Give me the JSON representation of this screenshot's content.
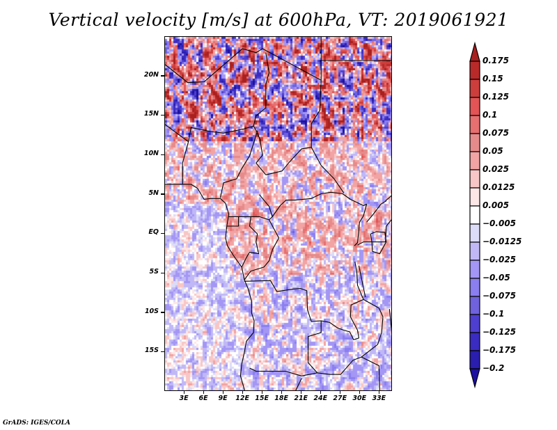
{
  "chart_data": {
    "type": "heatmap",
    "title": "Vertical velocity [m/s] at 600hPa, VT: 2019061921",
    "variable": "Vertical velocity",
    "units": "m/s",
    "level": "600hPa",
    "valid_time": "2019061921",
    "xlabel": "",
    "ylabel": "",
    "x_range_deg": [
      0,
      35
    ],
    "y_range_deg": [
      -20,
      25
    ],
    "x_ticks": [
      "3E",
      "6E",
      "9E",
      "12E",
      "15E",
      "18E",
      "21E",
      "24E",
      "27E",
      "30E",
      "33E"
    ],
    "x_tick_values": [
      3,
      6,
      9,
      12,
      15,
      18,
      21,
      24,
      27,
      30,
      33
    ],
    "y_ticks": [
      "20N",
      "15N",
      "10N",
      "5N",
      "EQ",
      "5S",
      "10S",
      "15S"
    ],
    "y_tick_values": [
      20,
      15,
      10,
      5,
      0,
      -5,
      -10,
      -15
    ],
    "grid": false,
    "legend_position": "right",
    "colorbar": {
      "orientation": "vertical",
      "extend": "both",
      "levels": [
        0.175,
        0.15,
        0.125,
        0.1,
        0.075,
        0.05,
        0.025,
        0.0125,
        0.005,
        -0.005,
        -0.0125,
        -0.025,
        -0.05,
        -0.075,
        -0.1,
        -0.125,
        -0.175,
        -0.2
      ],
      "level_labels": [
        "0.175",
        "0.15",
        "0.125",
        "0.1",
        "0.075",
        "0.05",
        "0.025",
        "0.0125",
        "0.005",
        "−0.005",
        "−0.0125",
        "−0.025",
        "−0.05",
        "−0.075",
        "−0.1",
        "−0.125",
        "−0.175",
        "−0.2"
      ],
      "colors_top_to_bottom": [
        "#a8201f",
        "#b82a29",
        "#cc3e3c",
        "#e25455",
        "#e66f70",
        "#e68b8b",
        "#f2a3a3",
        "#f8c6c6",
        "#fde6e6",
        "#ffffff",
        "#dcdcf8",
        "#c0b8f6",
        "#a396f4",
        "#8a7ef0",
        "#6f62dc",
        "#4e3fd0",
        "#3a2cc0",
        "#2a1eae",
        "#1c10a0"
      ]
    },
    "description": "Gridded vertical velocity field over central Africa; strong positive (red) bands over the Sahel/Sahara north of ~12N, mixed red/blue over central Africa, weak mostly negative (light blue) values over the Gulf of Guinea and South Atlantic."
  },
  "footer": {
    "credit": "GrADS: IGES/COLA"
  }
}
